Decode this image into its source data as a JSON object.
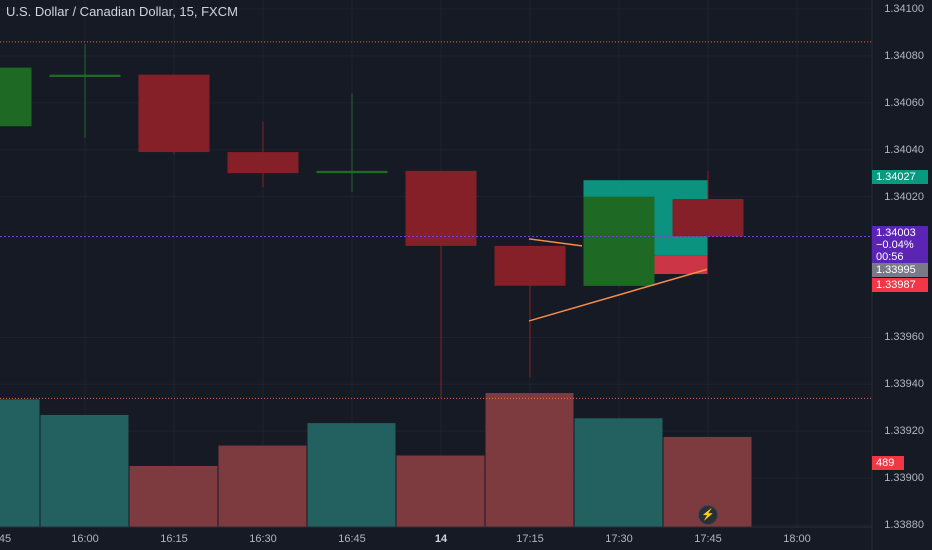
{
  "header": {
    "title": "U.S. Dollar / Canadian Dollar, 15, FXCM"
  },
  "colors": {
    "background": "#161a25",
    "up": "#1e6a24",
    "down": "#862028",
    "volume_up": "#22615f",
    "volume_down": "#7e3b3f",
    "trendline": "#f48c4a",
    "level_line": "#e0704a",
    "current_line": "#7b3fe4"
  },
  "chart_data": {
    "type": "candlestick",
    "title": "U.S. Dollar / Canadian Dollar, 15, FXCM",
    "ylim": [
      1.33872,
      1.34108
    ],
    "y_ticks": [
      "1.34100",
      "1.34080",
      "1.34060",
      "1.34040",
      "1.34020",
      "1.33960",
      "1.33940",
      "1.33920",
      "1.33900",
      "1.33880"
    ],
    "x_ticks": [
      "45",
      "16:00",
      "16:15",
      "16:30",
      "16:45",
      "14",
      "17:15",
      "17:30",
      "17:45",
      "18:00"
    ],
    "candles": [
      {
        "time": "15:45",
        "open": 1.3405,
        "high": 1.34075,
        "low": 1.34048,
        "close": 1.34075
      },
      {
        "time": "16:00",
        "open": 1.34071,
        "high": 1.34085,
        "low": 1.34045,
        "close": 1.34072
      },
      {
        "time": "16:15",
        "open": 1.34072,
        "high": 1.34072,
        "low": 1.34038,
        "close": 1.34039
      },
      {
        "time": "16:30",
        "open": 1.34039,
        "high": 1.34052,
        "low": 1.34024,
        "close": 1.3403
      },
      {
        "time": "16:45",
        "open": 1.3403,
        "high": 1.34064,
        "low": 1.34022,
        "close": 1.34031
      },
      {
        "time": "17:00",
        "open": 1.34031,
        "high": 1.34031,
        "low": 1.33934,
        "close": 1.33999
      },
      {
        "time": "17:15",
        "open": 1.33999,
        "high": 1.33999,
        "low": 1.33943,
        "close": 1.33982
      },
      {
        "time": "17:30",
        "open": 1.33982,
        "high": 1.3402,
        "low": 1.33982,
        "close": 1.3402
      },
      {
        "time": "17:45",
        "open": 1.34019,
        "high": 1.34031,
        "low": 1.34003,
        "close": 1.34003
      }
    ],
    "volume": [
      {
        "time": "15:45",
        "value": 500,
        "dir": "up"
      },
      {
        "time": "16:00",
        "value": 439,
        "dir": "up"
      },
      {
        "time": "16:15",
        "value": 239,
        "dir": "down"
      },
      {
        "time": "16:30",
        "value": 319,
        "dir": "down"
      },
      {
        "time": "16:45",
        "value": 407,
        "dir": "up"
      },
      {
        "time": "17:00",
        "value": 280,
        "dir": "down"
      },
      {
        "time": "17:15",
        "value": 525,
        "dir": "down"
      },
      {
        "time": "17:30",
        "value": 426,
        "dir": "up"
      },
      {
        "time": "17:45",
        "value": 353,
        "dir": "down"
      }
    ],
    "horizontal_levels": [
      1.34086,
      1.33934
    ],
    "current_price": 1.34003,
    "position_tool": {
      "entry": 1.33995,
      "target": 1.34027,
      "stop": 1.33987
    },
    "grid": true
  },
  "price_labels": {
    "target": "1.34027",
    "current_price": "1.34003",
    "change": "−0.04%",
    "countdown": "00:56",
    "entry": "1.33995",
    "stop": "1.33987",
    "volume": "489"
  }
}
